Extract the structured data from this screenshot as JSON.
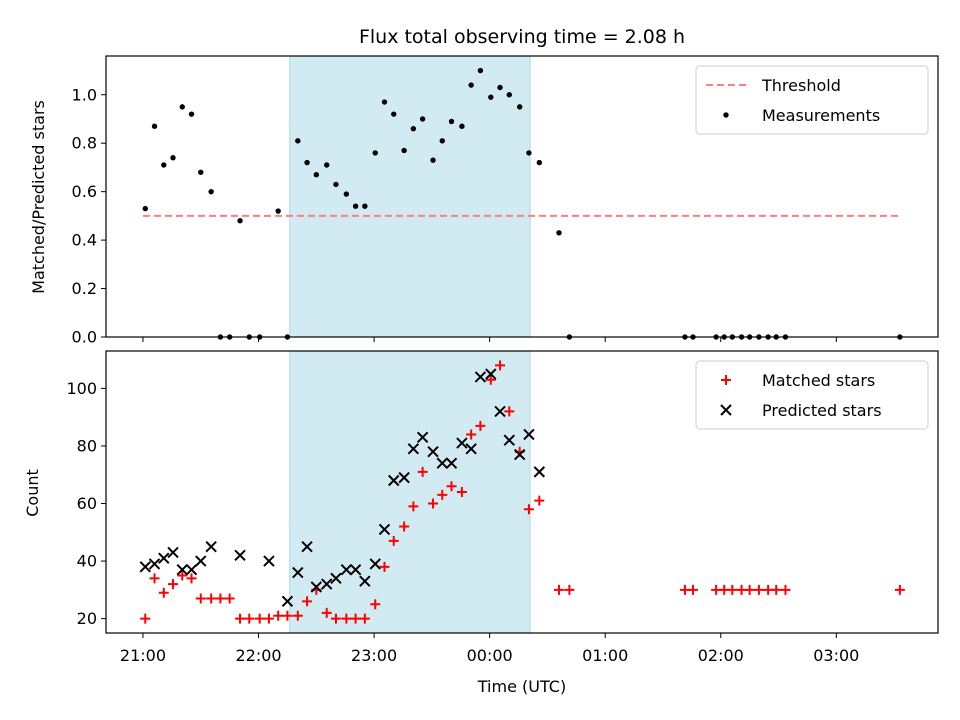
{
  "chart_data": {
    "title": "Flux total observing time = 2.08 h",
    "xlabel": "Time (UTC)",
    "x_unit": "hours since 21:00 UTC",
    "xlim": [
      -0.32,
      6.88
    ],
    "xticks": [
      0,
      1,
      2,
      3,
      4,
      5,
      6
    ],
    "xtick_labels": [
      "21:00",
      "22:00",
      "23:00",
      "00:00",
      "01:00",
      "02:00",
      "03:00"
    ],
    "highlight_span": [
      1.27,
      3.35
    ],
    "highlight_color": "#add8e6",
    "panels": [
      {
        "type": "scatter",
        "ylabel": "Matched/Predicted stars",
        "ylim": [
          0,
          1.16
        ],
        "yticks": [
          0.0,
          0.2,
          0.4,
          0.6,
          0.8,
          1.0
        ],
        "ytick_labels": [
          "0.0",
          "0.2",
          "0.4",
          "0.6",
          "0.8",
          "1.0"
        ],
        "legend_position": "upper right",
        "threshold": {
          "name": "Threshold",
          "value": 0.5,
          "x": [
            0,
            6.55
          ],
          "color": "#ff7f7f"
        },
        "series": [
          {
            "name": "Measurements",
            "color": "#000000",
            "x": [
              0.02,
              0.1,
              0.18,
              0.26,
              0.34,
              0.42,
              0.5,
              0.59,
              0.67,
              0.75,
              0.84,
              0.92,
              1.01,
              1.17,
              1.25,
              1.34,
              1.42,
              1.5,
              1.59,
              1.67,
              1.76,
              1.84,
              1.92,
              2.01,
              2.09,
              2.17,
              2.26,
              2.34,
              2.42,
              2.51,
              2.59,
              2.67,
              2.76,
              2.84,
              2.92,
              3.01,
              3.09,
              3.17,
              3.26,
              3.34,
              3.43,
              3.6,
              3.69,
              4.69,
              4.76,
              4.96,
              5.03,
              5.1,
              5.18,
              5.25,
              5.33,
              5.41,
              5.48,
              5.56,
              6.55
            ],
            "y": [
              0.53,
              0.87,
              0.71,
              0.74,
              0.95,
              0.92,
              0.68,
              0.6,
              0,
              0,
              0.48,
              0,
              0,
              0.52,
              0,
              0.81,
              0.72,
              0.67,
              0.71,
              0.63,
              0.59,
              0.54,
              0.54,
              0.76,
              0.97,
              0.92,
              0.77,
              0.86,
              0.9,
              0.73,
              0.81,
              0.89,
              0.87,
              1.04,
              1.1,
              0.99,
              1.03,
              1.0,
              0.95,
              0.76,
              0.72,
              0.43,
              0,
              0,
              0,
              0,
              0,
              0,
              0,
              0,
              0,
              0,
              0,
              0,
              0
            ]
          }
        ]
      },
      {
        "type": "scatter",
        "ylabel": "Count",
        "ylim": [
          15,
          113
        ],
        "yticks": [
          20,
          40,
          60,
          80,
          100
        ],
        "ytick_labels": [
          "20",
          "40",
          "60",
          "80",
          "100"
        ],
        "legend_position": "upper right",
        "series": [
          {
            "name": "Matched stars",
            "color": "#ff0000",
            "x": [
              0.02,
              0.1,
              0.18,
              0.26,
              0.34,
              0.42,
              0.5,
              0.59,
              0.67,
              0.75,
              0.84,
              0.92,
              1.01,
              1.09,
              1.17,
              1.25,
              1.34,
              1.42,
              1.5,
              1.59,
              1.67,
              1.76,
              1.84,
              1.92,
              2.01,
              2.09,
              2.17,
              2.26,
              2.34,
              2.42,
              2.51,
              2.59,
              2.67,
              2.76,
              2.84,
              2.92,
              3.01,
              3.09,
              3.17,
              3.26,
              3.34,
              3.43,
              3.6,
              3.69,
              4.69,
              4.76,
              4.96,
              5.03,
              5.1,
              5.18,
              5.25,
              5.33,
              5.41,
              5.48,
              5.56,
              6.55
            ],
            "y": [
              20,
              34,
              29,
              32,
              35,
              34,
              27,
              27,
              27,
              27,
              20,
              20,
              20,
              20,
              21,
              21,
              21,
              26,
              30,
              22,
              20,
              20,
              20,
              20,
              25,
              38,
              47,
              52,
              59,
              71,
              60,
              63,
              66,
              64,
              84,
              87,
              103,
              108,
              92,
              78,
              58,
              61,
              30,
              30,
              30,
              30,
              30,
              30,
              30,
              30,
              30,
              30,
              30,
              30,
              30,
              30
            ]
          },
          {
            "name": "Predicted stars",
            "color": "#000000",
            "x": [
              0.02,
              0.1,
              0.18,
              0.26,
              0.34,
              0.42,
              0.5,
              0.59,
              0.84,
              1.09,
              1.25,
              1.34,
              1.42,
              1.5,
              1.59,
              1.67,
              1.76,
              1.84,
              1.92,
              2.01,
              2.09,
              2.17,
              2.26,
              2.34,
              2.42,
              2.51,
              2.59,
              2.67,
              2.76,
              2.84,
              2.92,
              3.01,
              3.09,
              3.17,
              3.26,
              3.34,
              3.43
            ],
            "y": [
              38,
              39,
              41,
              43,
              37,
              37,
              40,
              45,
              42,
              40,
              26,
              36,
              45,
              31,
              32,
              34,
              37,
              37,
              33,
              39,
              51,
              68,
              69,
              79,
              83,
              78,
              74,
              74,
              81,
              79,
              104,
              105,
              92,
              82,
              77,
              84,
              71
            ]
          }
        ]
      }
    ]
  }
}
